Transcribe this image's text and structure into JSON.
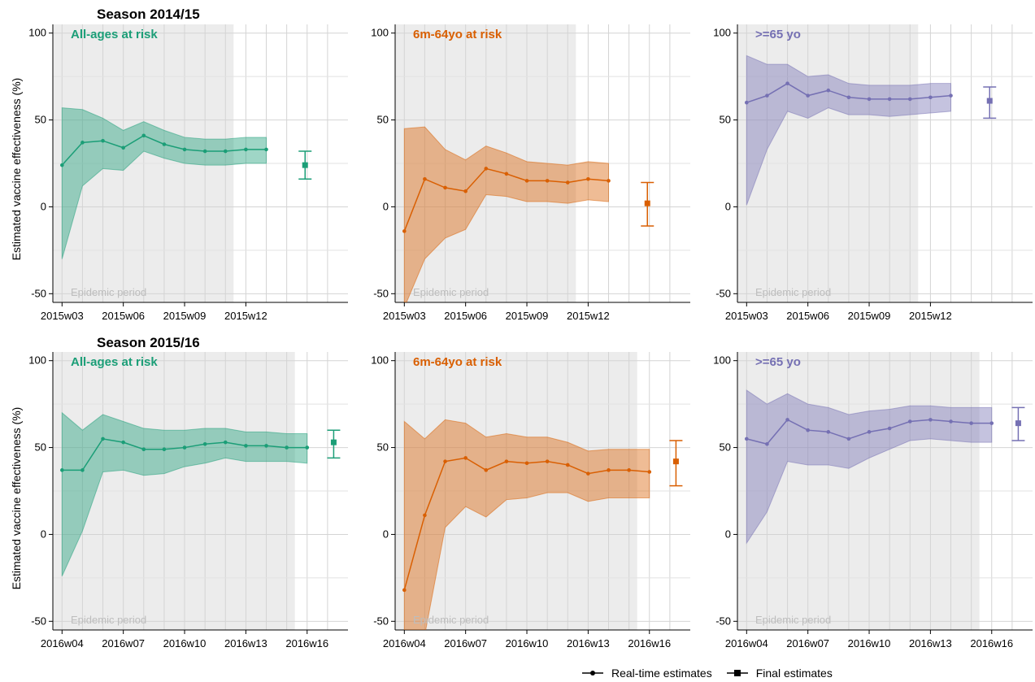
{
  "figure": {
    "ylabel": "Estimated vaccine effectiveness (%)",
    "epidemic_label": "Epidemic period",
    "legend": {
      "realtime": "Real-time estimates",
      "final": "Final estimates"
    },
    "colors": {
      "all_ages": "#1b9e77",
      "young": "#d95f02",
      "elderly": "#7570b3",
      "shade": "#ececec",
      "grid": "#d4d4d4"
    }
  },
  "chart_data": [
    {
      "type": "line",
      "season": "Season 2014/15",
      "title": "All-ages at risk",
      "color": "#1b9e77",
      "ylim": [
        -55,
        105
      ],
      "yticks": [
        -50,
        0,
        50,
        100
      ],
      "x_start": 3,
      "x_end": 17,
      "epi_end": 11.4,
      "xticks": [
        {
          "at": 3,
          "label": "2015w03"
        },
        {
          "at": 6,
          "label": "2015w06"
        },
        {
          "at": 9,
          "label": "2015w09"
        },
        {
          "at": 12,
          "label": "2015w12"
        }
      ],
      "x": [
        3,
        4,
        5,
        6,
        7,
        8,
        9,
        10,
        11,
        12,
        13
      ],
      "values": [
        24,
        37,
        38,
        34,
        41,
        36,
        33,
        32,
        32,
        33,
        33
      ],
      "lower": [
        -30,
        12,
        22,
        21,
        32,
        28,
        25,
        24,
        24,
        25,
        25
      ],
      "upper": [
        57,
        56,
        51,
        44,
        49,
        44,
        40,
        39,
        39,
        40,
        40
      ],
      "final": {
        "x": 14.9,
        "value": 24,
        "lower": 16,
        "upper": 32
      }
    },
    {
      "type": "line",
      "season": "",
      "title": "6m-64yo at risk",
      "color": "#d95f02",
      "ylim": [
        -55,
        105
      ],
      "yticks": [
        -50,
        0,
        50,
        100
      ],
      "x_start": 3,
      "x_end": 17,
      "epi_end": 11.4,
      "xticks": [
        {
          "at": 3,
          "label": "2015w03"
        },
        {
          "at": 6,
          "label": "2015w06"
        },
        {
          "at": 9,
          "label": "2015w09"
        },
        {
          "at": 12,
          "label": "2015w12"
        }
      ],
      "x": [
        3,
        4,
        5,
        6,
        7,
        8,
        9,
        10,
        11,
        12,
        13
      ],
      "values": [
        -14,
        16,
        11,
        9,
        22,
        19,
        15,
        15,
        14,
        16,
        15
      ],
      "lower": [
        -58,
        -30,
        -18,
        -13,
        7,
        6,
        3,
        3,
        2,
        4,
        3
      ],
      "upper": [
        45,
        46,
        33,
        27,
        35,
        31,
        26,
        25,
        24,
        26,
        25
      ],
      "final": {
        "x": 14.9,
        "value": 2,
        "lower": -11,
        "upper": 14
      }
    },
    {
      "type": "line",
      "season": "",
      "title": ">=65 yo",
      "color": "#7570b3",
      "ylim": [
        -55,
        105
      ],
      "yticks": [
        -50,
        0,
        50,
        100
      ],
      "x_start": 3,
      "x_end": 17,
      "epi_end": 11.4,
      "xticks": [
        {
          "at": 3,
          "label": "2015w03"
        },
        {
          "at": 6,
          "label": "2015w06"
        },
        {
          "at": 9,
          "label": "2015w09"
        },
        {
          "at": 12,
          "label": "2015w12"
        }
      ],
      "x": [
        3,
        4,
        5,
        6,
        7,
        8,
        9,
        10,
        11,
        12,
        13
      ],
      "values": [
        60,
        64,
        71,
        64,
        67,
        63,
        62,
        62,
        62,
        63,
        64
      ],
      "lower": [
        1,
        33,
        55,
        51,
        57,
        53,
        53,
        52,
        53,
        54,
        55
      ],
      "upper": [
        87,
        82,
        82,
        75,
        76,
        71,
        70,
        70,
        70,
        71,
        71
      ],
      "final": {
        "x": 14.9,
        "value": 61,
        "lower": 51,
        "upper": 69
      }
    },
    {
      "type": "line",
      "season": "Season 2015/16",
      "title": "All-ages at risk",
      "color": "#1b9e77",
      "ylim": [
        -55,
        105
      ],
      "yticks": [
        -50,
        0,
        50,
        100
      ],
      "x_start": 4,
      "x_end": 18,
      "epi_end": 15.4,
      "xticks": [
        {
          "at": 4,
          "label": "2016w04"
        },
        {
          "at": 7,
          "label": "2016w07"
        },
        {
          "at": 10,
          "label": "2016w10"
        },
        {
          "at": 13,
          "label": "2016w13"
        },
        {
          "at": 16,
          "label": "2016w16"
        }
      ],
      "x": [
        4,
        5,
        6,
        7,
        8,
        9,
        10,
        11,
        12,
        13,
        14,
        15,
        16
      ],
      "values": [
        37,
        37,
        55,
        53,
        49,
        49,
        50,
        52,
        53,
        51,
        51,
        50,
        50
      ],
      "lower": [
        -24,
        2,
        36,
        37,
        34,
        35,
        39,
        41,
        44,
        42,
        42,
        42,
        41
      ],
      "upper": [
        70,
        60,
        69,
        65,
        61,
        60,
        60,
        61,
        61,
        59,
        59,
        58,
        58
      ],
      "final": {
        "x": 17.3,
        "value": 53,
        "lower": 44,
        "upper": 60
      }
    },
    {
      "type": "line",
      "season": "",
      "title": "6m-64yo at risk",
      "color": "#d95f02",
      "ylim": [
        -55,
        105
      ],
      "yticks": [
        -50,
        0,
        50,
        100
      ],
      "x_start": 4,
      "x_end": 18,
      "epi_end": 15.4,
      "xticks": [
        {
          "at": 4,
          "label": "2016w04"
        },
        {
          "at": 7,
          "label": "2016w07"
        },
        {
          "at": 10,
          "label": "2016w10"
        },
        {
          "at": 13,
          "label": "2016w13"
        },
        {
          "at": 16,
          "label": "2016w16"
        }
      ],
      "x": [
        4,
        5,
        6,
        7,
        8,
        9,
        10,
        11,
        12,
        13,
        14,
        15,
        16
      ],
      "values": [
        -32,
        11,
        42,
        44,
        37,
        42,
        41,
        42,
        40,
        35,
        37,
        37,
        36
      ],
      "lower": [
        -58,
        -58,
        4,
        16,
        10,
        20,
        21,
        24,
        24,
        19,
        21,
        21,
        21
      ],
      "upper": [
        65,
        55,
        66,
        64,
        56,
        58,
        56,
        56,
        53,
        48,
        49,
        49,
        49
      ],
      "final": {
        "x": 17.3,
        "value": 42,
        "lower": 28,
        "upper": 54
      }
    },
    {
      "type": "line",
      "season": "",
      "title": ">=65 yo",
      "color": "#7570b3",
      "ylim": [
        -55,
        105
      ],
      "yticks": [
        -50,
        0,
        50,
        100
      ],
      "x_start": 4,
      "x_end": 18,
      "epi_end": 15.4,
      "xticks": [
        {
          "at": 4,
          "label": "2016w04"
        },
        {
          "at": 7,
          "label": "2016w07"
        },
        {
          "at": 10,
          "label": "2016w10"
        },
        {
          "at": 13,
          "label": "2016w13"
        },
        {
          "at": 16,
          "label": "2016w16"
        }
      ],
      "x": [
        4,
        5,
        6,
        7,
        8,
        9,
        10,
        11,
        12,
        13,
        14,
        15,
        16
      ],
      "values": [
        55,
        52,
        66,
        60,
        59,
        55,
        59,
        61,
        65,
        66,
        65,
        64,
        64
      ],
      "lower": [
        -5,
        13,
        42,
        40,
        40,
        38,
        44,
        49,
        54,
        55,
        54,
        53,
        53
      ],
      "upper": [
        83,
        75,
        81,
        75,
        73,
        69,
        71,
        72,
        74,
        74,
        73,
        73,
        73
      ],
      "final": {
        "x": 17.3,
        "value": 64,
        "lower": 54,
        "upper": 73
      }
    }
  ]
}
